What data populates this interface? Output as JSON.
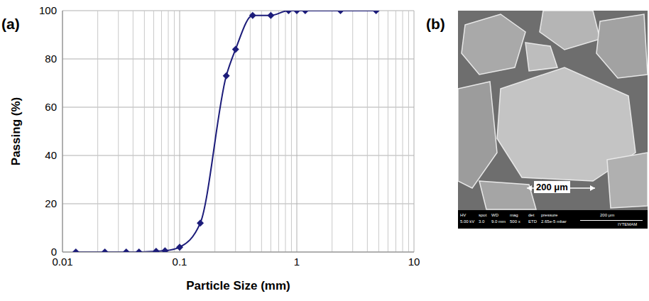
{
  "chart_data": {
    "type": "line",
    "panel": "(a)",
    "x_label": "Particle Size (mm)",
    "y_label": "Passing (%)",
    "x": [
      0.013,
      0.023,
      0.035,
      0.045,
      0.063,
      0.075,
      0.1,
      0.15,
      0.25,
      0.3,
      0.42,
      0.6,
      0.85,
      1.0,
      1.18,
      2.36,
      4.75
    ],
    "values": [
      0,
      0,
      0,
      0,
      0.3,
      0.5,
      2,
      12,
      73,
      84,
      98,
      98,
      100,
      100,
      100,
      100,
      100
    ],
    "color": "#1c1c7a",
    "marker": "diamond",
    "xlim": [
      0.01,
      10
    ],
    "xticks": [
      0.01,
      0.1,
      1,
      10
    ],
    "ylim": [
      0,
      100
    ],
    "yticks": [
      0,
      20,
      40,
      60,
      80,
      100
    ],
    "log": "x",
    "grid": true
  },
  "image_panel": {
    "panel": "(b)",
    "scale_bar": "200 μm",
    "info_bar": {
      "fields": [
        {
          "name": "HV",
          "value": "5.00 kV"
        },
        {
          "name": "spot",
          "value": "3.0"
        },
        {
          "name": "WD",
          "value": "9.0 mm"
        },
        {
          "name": "mag",
          "value": "500 x"
        },
        {
          "name": "det",
          "value": "ETD"
        },
        {
          "name": "pressure",
          "value": "2.65e-5 mbar"
        }
      ],
      "scale": "200 μm",
      "lab": "IYTEMAM"
    }
  }
}
